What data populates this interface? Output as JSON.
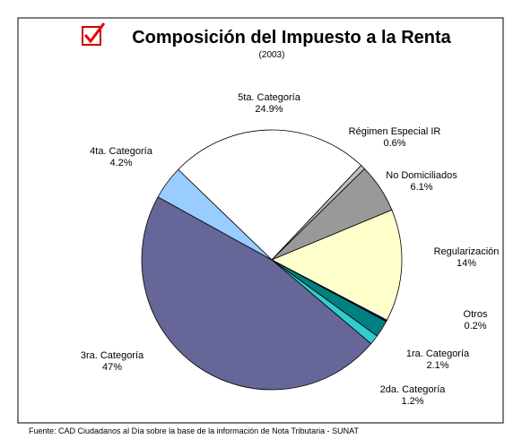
{
  "chart_data": {
    "type": "pie",
    "title": "Composición del Impuesto a la Renta",
    "subtitle": "(2003)",
    "source": "Fuente: CAD Ciudadanos al Día sobre la base de la información de Nota Tributaria - SUNAT",
    "categories": [
      "5ta. Categoría",
      "Régimen Especial IR",
      "No Domiciliados",
      "Regularización",
      "Otros",
      "1ra. Categoría",
      "2da. Categoría",
      "3ra. Categoría",
      "4ta. Categoría"
    ],
    "values": [
      24.9,
      0.6,
      6.1,
      14,
      0.2,
      2.1,
      1.2,
      47,
      4.2
    ],
    "value_labels": [
      "24.9%",
      "0.6%",
      "6.1%",
      "14%",
      "0.2%",
      "2.1%",
      "1.2%",
      "47%",
      "4.2%"
    ],
    "colors": [
      "#ffffff",
      "#c0c0c0",
      "#999999",
      "#ffffcc",
      "#000080",
      "#008080",
      "#33cccc",
      "#666699",
      "#99ccff"
    ]
  }
}
